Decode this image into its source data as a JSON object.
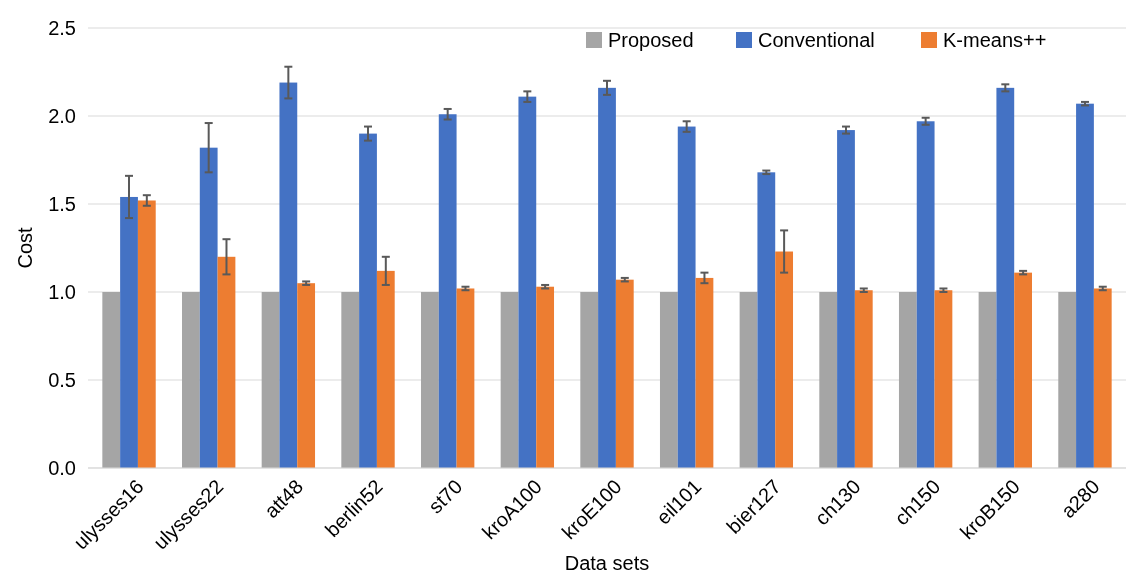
{
  "chart_data": {
    "type": "bar",
    "xlabel": "Data sets",
    "ylabel": "Cost",
    "categories": [
      "ulysses16",
      "ulysses22",
      "att48",
      "berlin52",
      "st70",
      "kroA100",
      "kroE100",
      "eil101",
      "bier127",
      "ch130",
      "ch150",
      "kroB150",
      "a280"
    ],
    "series": [
      {
        "name": "Proposed",
        "color": "#a5a5a5",
        "values": [
          1,
          1,
          1,
          1,
          1,
          1,
          1,
          1,
          1,
          1,
          1,
          1,
          1
        ]
      },
      {
        "name": "Conventional",
        "color": "#4472c4",
        "values": [
          1.54,
          1.82,
          2.19,
          1.9,
          2.01,
          2.11,
          2.16,
          1.94,
          1.68,
          1.92,
          1.97,
          2.16,
          2.07
        ],
        "errors": [
          0.12,
          0.14,
          0.09,
          0.04,
          0.03,
          0.03,
          0.04,
          0.03,
          0.01,
          0.02,
          0.02,
          0.02,
          0.01
        ]
      },
      {
        "name": "K-means++",
        "color": "#ed7d31",
        "values": [
          1.52,
          1.2,
          1.05,
          1.12,
          1.02,
          1.03,
          1.07,
          1.08,
          1.23,
          1.01,
          1.01,
          1.11,
          1.02
        ],
        "errors": [
          0.03,
          0.1,
          0.01,
          0.08,
          0.01,
          0.01,
          0.01,
          0.03,
          0.12,
          0.01,
          0.01,
          0.01,
          0.01
        ]
      }
    ],
    "ylim": [
      0,
      2.5
    ],
    "yticks": [
      {
        "value": 0,
        "label": "0.0"
      },
      {
        "value": 0.5,
        "label": "0.5"
      },
      {
        "value": 1,
        "label": "1.0"
      },
      {
        "value": 1.5,
        "label": "1.5"
      },
      {
        "value": 2,
        "label": "2.0"
      },
      {
        "value": 2.5,
        "label": "2.5"
      }
    ],
    "grid": "y",
    "legend": "top right"
  }
}
